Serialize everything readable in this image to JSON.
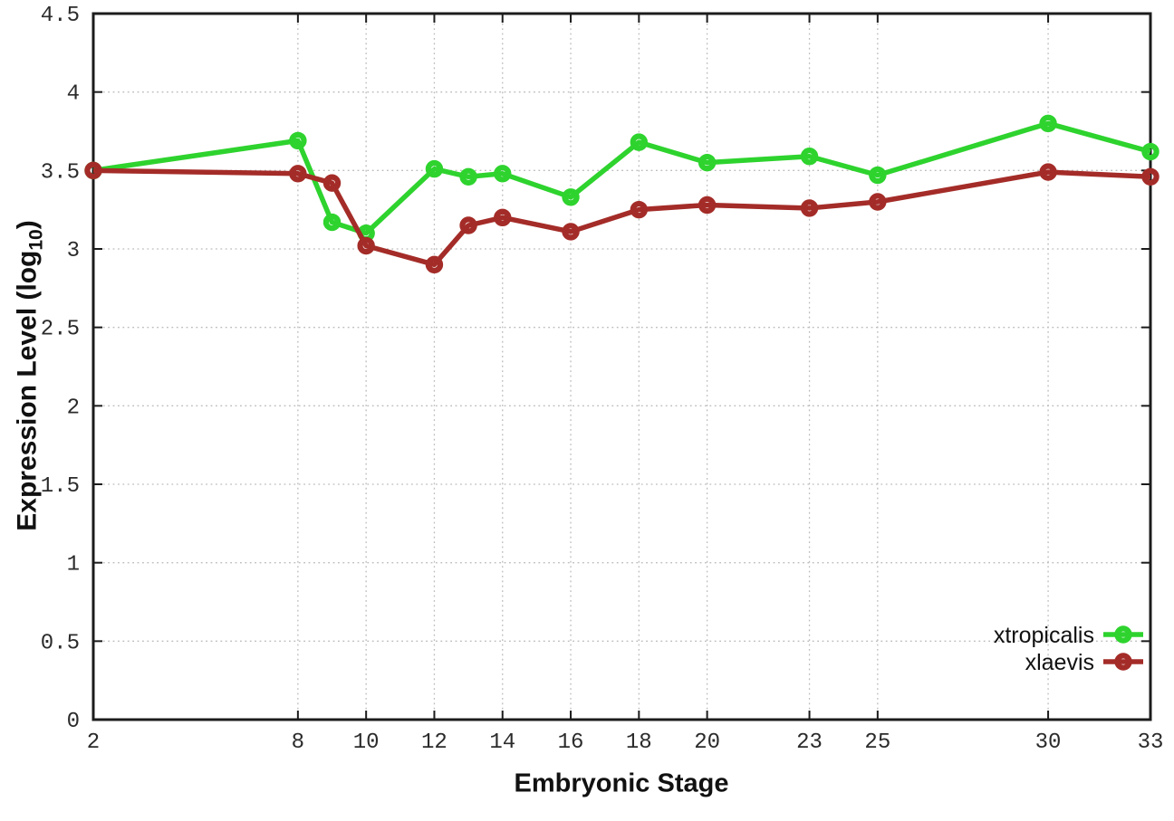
{
  "chart_data": {
    "type": "line",
    "title": "",
    "xlabel": "Embryonic Stage",
    "ylabel": "Expression Level (log10)",
    "ylabel_parts": {
      "main": "Expression Level (log",
      "sub": "10",
      "close": ")"
    },
    "x": [
      2,
      8,
      9,
      10,
      12,
      13,
      14,
      16,
      18,
      20,
      23,
      25,
      30,
      33
    ],
    "series": [
      {
        "name": "xtropicalis",
        "color": "#2ed32e",
        "values": [
          3.5,
          3.69,
          3.17,
          3.1,
          3.51,
          3.46,
          3.48,
          3.33,
          3.68,
          3.55,
          3.59,
          3.47,
          3.8,
          3.62
        ]
      },
      {
        "name": "xlaevis",
        "color": "#a42c28",
        "values": [
          3.5,
          3.48,
          3.42,
          3.02,
          2.9,
          3.15,
          3.2,
          3.11,
          3.25,
          3.28,
          3.26,
          3.3,
          3.49,
          3.46
        ]
      }
    ],
    "xtick_labels": [
      "2",
      "8",
      "10",
      "12",
      "14",
      "16",
      "18",
      "20",
      "23",
      "25",
      "30",
      "33"
    ],
    "ytick_labels": [
      "0",
      "0.5",
      "1",
      "1.5",
      "2",
      "2.5",
      "3",
      "3.5",
      "4",
      "4.5"
    ],
    "xlim": [
      2,
      33
    ],
    "ylim": [
      0,
      4.5
    ],
    "grid": true,
    "legend_position": "bottom-right",
    "marker": "open-circle",
    "colors": {
      "grid": "#bcbcbc",
      "axis": "#1c1c1c",
      "tick_text": "#2b2b2b",
      "label_text": "#111111"
    }
  }
}
